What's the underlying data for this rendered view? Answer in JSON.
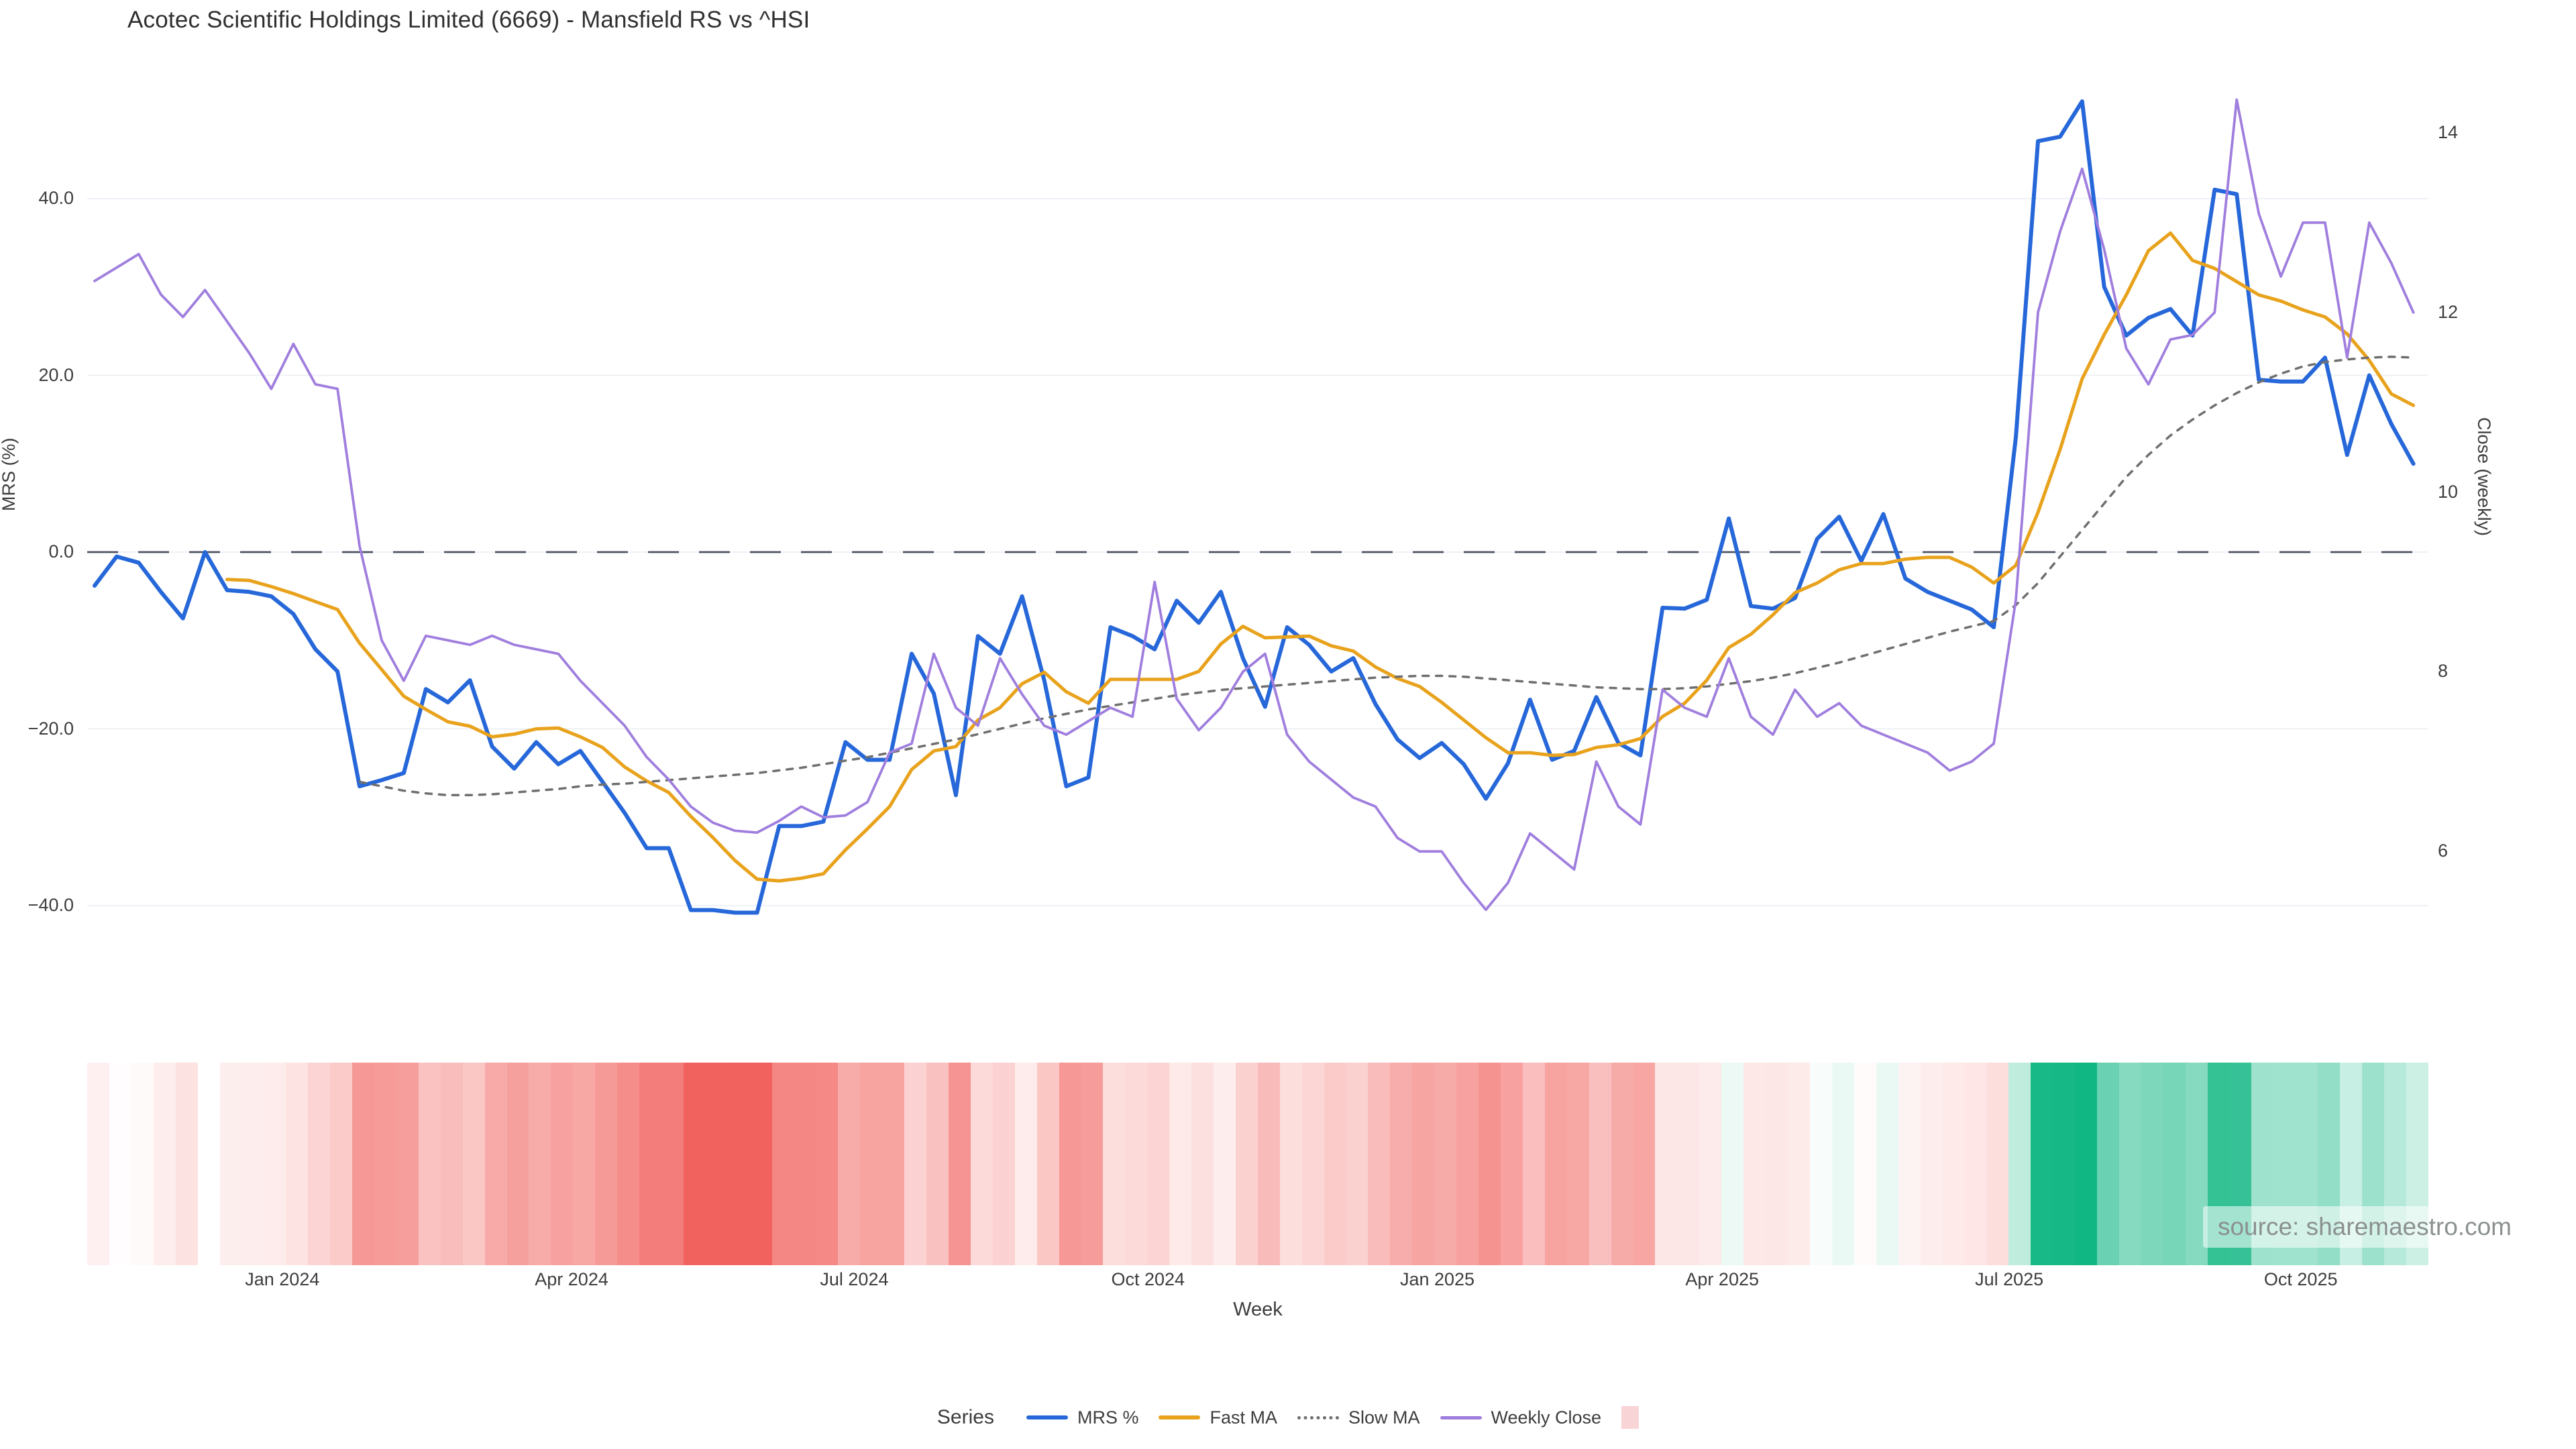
{
  "title": "Acotec Scientific Holdings Limited (6669) - Mansfield RS vs ^HSI",
  "source_note": "source: sharemaestro.com",
  "colors": {
    "mrs_blue": "#2667d9",
    "fast_ma_orange": "#e8a21c",
    "slow_ma_gray": "#6f6f6f",
    "weekly_close_purple": "#a07ede",
    "zero_dash_line": "#4c5362",
    "gridline": "#eef1f6",
    "heatmap_negative": "#ee4540",
    "heatmap_positive": "#11b783",
    "legend_heatmap_swatch": "#f9d4d6",
    "tick_text": "#3d3d3d"
  },
  "legend": {
    "title": "Series",
    "items": [
      {
        "label": "MRS %",
        "swatch": "line",
        "color": "#2667d9"
      },
      {
        "label": "Fast MA",
        "swatch": "line",
        "color": "#e8a21c"
      },
      {
        "label": "Slow MA",
        "swatch": "dotted",
        "color": "#6f6f6f"
      },
      {
        "label": "Weekly Close",
        "swatch": "thinline",
        "color": "#a07ede"
      },
      {
        "label": "",
        "swatch": "square",
        "color": "#f9d4d6"
      }
    ]
  },
  "chart_data": {
    "type": "line",
    "title": "Acotec Scientific Holdings Limited (6669) - Mansfield RS vs ^HSI",
    "xlabel": "Week",
    "x_unit": "week_index",
    "n_weeks": 106,
    "x_ticks": [
      {
        "label": "Jan 2024",
        "week": 8.5
      },
      {
        "label": "Apr 2024",
        "week": 21.6
      },
      {
        "label": "Jul 2024",
        "week": 34.4
      },
      {
        "label": "Oct 2024",
        "week": 47.7
      },
      {
        "label": "Jan 2025",
        "week": 60.8
      },
      {
        "label": "Apr 2025",
        "week": 73.7
      },
      {
        "label": "Jul 2025",
        "week": 86.7
      },
      {
        "label": "Oct 2025",
        "week": 99.9
      }
    ],
    "left_axis": {
      "label": "MRS (%)",
      "ticks": [
        40.0,
        20.0,
        0.0,
        -20.0,
        -40.0
      ],
      "tick_labels": [
        "40.0",
        "20.0",
        "0.0",
        "−20.0",
        "−40.0"
      ],
      "zero_line_dashed": true
    },
    "right_axis": {
      "label": "Close (weekly)",
      "ticks": [
        14,
        12,
        10,
        8,
        6
      ],
      "tick_labels": [
        "14",
        "12",
        "10",
        "8",
        "6"
      ]
    },
    "grid": "horizontal-left-axis-only",
    "legend_position": "bottom-center",
    "series": [
      {
        "name": "MRS %",
        "axis": "left",
        "color": "#2667d9",
        "style": "solid",
        "width": 6,
        "start_week": 0,
        "values": [
          -3.8,
          -0.5,
          -1.2,
          -4.5,
          -7.5,
          0,
          -4.3,
          -4.5,
          -5,
          -7,
          -11,
          -13.5,
          -26.5,
          -25.8,
          -25,
          -15.5,
          -17,
          -14.5,
          -22,
          -24.5,
          -21.5,
          -24,
          -22.5,
          -26,
          -29.5,
          -33.5,
          -33.5,
          -40.5,
          -40.5,
          -40.8,
          -40.8,
          -31,
          -31,
          -30.5,
          -21.5,
          -23.5,
          -23.5,
          -11.5,
          -16,
          -27.5,
          -9.5,
          -11.5,
          -5,
          -14.5,
          -26.5,
          -25.5,
          -8.5,
          -9.5,
          -11,
          -5.5,
          -8,
          -4.5,
          -12,
          -17.5,
          -8.5,
          -10.5,
          -13.5,
          -12,
          -17.2,
          -21.2,
          -23.3,
          -21.6,
          -24,
          -27.9,
          -23.9,
          -16.7,
          -23.5,
          -22.5,
          -16.4,
          -21.6,
          -23,
          -6.3,
          -6.4,
          -5.4,
          3.8,
          -6.1,
          -6.4,
          -5.2,
          1.5,
          4,
          -1,
          4.3,
          -3,
          -4.5,
          -5.5,
          -6.5,
          -8.5,
          13,
          46.5,
          47,
          51,
          30,
          24.5,
          26.5,
          27.5,
          24.5,
          41,
          40.5,
          19.5,
          19.3,
          19.3,
          22,
          11,
          20,
          14.5,
          10
        ]
      },
      {
        "name": "Fast MA",
        "axis": "left",
        "color": "#e8a21c",
        "style": "solid",
        "width": 5,
        "start_week": 6,
        "values": [
          -3.1,
          -3.2,
          -3.9,
          -4.7,
          -5.6,
          -6.5,
          -10.3,
          -13.3,
          -16.3,
          -17.8,
          -19.2,
          -19.7,
          -20.9,
          -20.6,
          -20,
          -19.9,
          -20.9,
          -22.1,
          -24.3,
          -25.9,
          -27.2,
          -29.9,
          -32.3,
          -34.9,
          -37,
          -37.2,
          -36.9,
          -36.4,
          -33.7,
          -31.3,
          -28.8,
          -24.6,
          -22.5,
          -22,
          -19,
          -17.6,
          -14.9,
          -13.6,
          -15.8,
          -17.1,
          -14.4,
          -14.4,
          -14.4,
          -14.4,
          -13.5,
          -10.4,
          -8.4,
          -9.7,
          -9.6,
          -9.5,
          -10.6,
          -11.2,
          -13,
          -14.3,
          -15.2,
          -17,
          -19,
          -21,
          -22.7,
          -22.7,
          -23,
          -22.9,
          -22.1,
          -21.8,
          -21.1,
          -18.6,
          -17.1,
          -14.5,
          -10.8,
          -9.3,
          -7.1,
          -4.6,
          -3.5,
          -2,
          -1.3,
          -1.3,
          -0.8,
          -0.6,
          -0.6,
          -1.7,
          -3.5,
          -1.5,
          4.5,
          11.6,
          19.6,
          24.6,
          29.1,
          34.1,
          36.1,
          33,
          32.1,
          30.6,
          29.1,
          28.4,
          27.4,
          26.6,
          24.7,
          21.7,
          17.9,
          16.6
        ]
      },
      {
        "name": "Slow MA",
        "axis": "left",
        "color": "#6f6f6f",
        "style": "dotted",
        "width": 3.5,
        "start_week": 12,
        "values": [
          -26,
          -26.5,
          -27,
          -27.3,
          -27.5,
          -27.5,
          -27.4,
          -27.2,
          -27,
          -26.8,
          -26.5,
          -26.3,
          -26.2,
          -26,
          -25.8,
          -25.6,
          -25.4,
          -25.2,
          -25,
          -24.7,
          -24.4,
          -24,
          -23.6,
          -23.2,
          -22.7,
          -22.2,
          -21.7,
          -21.2,
          -20.6,
          -20,
          -19.4,
          -18.8,
          -18.3,
          -17.8,
          -17.4,
          -17,
          -16.6,
          -16.2,
          -15.9,
          -15.6,
          -15.4,
          -15.2,
          -15,
          -14.8,
          -14.6,
          -14.4,
          -14.2,
          -14.1,
          -14,
          -14,
          -14.1,
          -14.3,
          -14.5,
          -14.7,
          -14.9,
          -15.1,
          -15.3,
          -15.4,
          -15.5,
          -15.5,
          -15.4,
          -15.2,
          -14.9,
          -14.6,
          -14.2,
          -13.7,
          -13.1,
          -12.5,
          -11.8,
          -11.1,
          -10.4,
          -9.7,
          -9,
          -8.4,
          -7.8,
          -6,
          -3.5,
          -0.5,
          2.5,
          5.5,
          8.5,
          11,
          13.2,
          15,
          16.6,
          18,
          19.2,
          20.2,
          21,
          21.5,
          21.8,
          22,
          22.1,
          22
        ]
      },
      {
        "name": "Weekly Close",
        "axis": "right",
        "color": "#a07ede",
        "style": "solid",
        "width": 3.8,
        "start_week": 0,
        "values": [
          12.35,
          12.5,
          12.65,
          12.2,
          11.95,
          12.25,
          11.9,
          11.55,
          11.15,
          11.65,
          11.2,
          11.15,
          9.4,
          8.35,
          7.9,
          8.4,
          8.35,
          8.3,
          8.4,
          8.3,
          8.25,
          8.2,
          7.9,
          7.65,
          7.4,
          7.05,
          6.8,
          6.5,
          6.32,
          6.23,
          6.21,
          6.34,
          6.5,
          6.38,
          6.4,
          6.55,
          7.1,
          7.2,
          8.2,
          7.6,
          7.4,
          8.15,
          7.75,
          7.4,
          7.3,
          7.45,
          7.6,
          7.5,
          9,
          7.7,
          7.35,
          7.6,
          8,
          8.2,
          7.3,
          7,
          6.8,
          6.6,
          6.5,
          6.15,
          6,
          6,
          5.65,
          5.35,
          5.65,
          6.2,
          6,
          5.8,
          7,
          6.5,
          6.3,
          7.8,
          7.6,
          7.5,
          8.15,
          7.5,
          7.3,
          7.8,
          7.5,
          7.65,
          7.4,
          7.3,
          7.2,
          7.1,
          6.9,
          7,
          7.2,
          8.8,
          12,
          12.9,
          13.6,
          12.7,
          11.6,
          11.2,
          11.7,
          11.75,
          12,
          14.37,
          13.1,
          12.4,
          13,
          13,
          11.5,
          13,
          12.55,
          12
        ]
      }
    ],
    "heatmap": {
      "description": "weekly strip below chart, one cell per week, colored by MRS % value",
      "values_from_series": "MRS %",
      "negative_color": "#ee4540",
      "positive_color": "#f9d4d6",
      "positive_full_color": "#11b783",
      "color_scale_abs_max": 48
    }
  }
}
